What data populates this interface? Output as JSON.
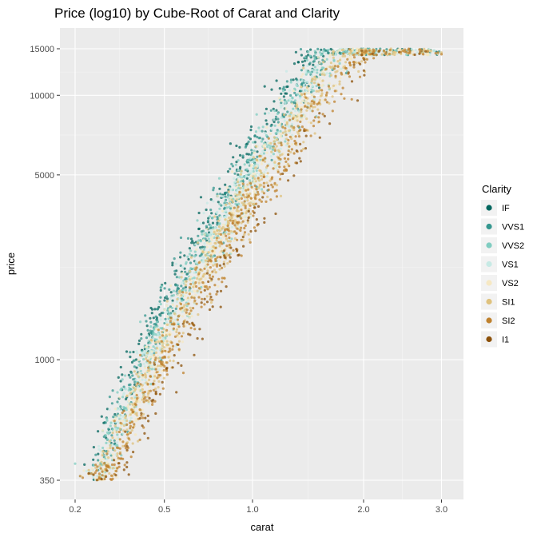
{
  "chart_data": {
    "type": "scatter",
    "title": "Price (log10) by Cube-Root of Carat and Clarity",
    "xlabel": "carat",
    "ylabel": "price",
    "x_scale": "cube-root",
    "y_scale": "log10",
    "xlim": [
      0.2,
      3.0
    ],
    "ylim": [
      350,
      15000
    ],
    "x_ticks": [
      0.2,
      0.5,
      1.0,
      2.0,
      3.0
    ],
    "x_tick_labels": [
      "0.2",
      "0.5",
      "1.0",
      "2.0",
      "3.0"
    ],
    "y_ticks": [
      350,
      1000,
      5000,
      10000,
      15000
    ],
    "y_tick_labels": [
      "350",
      "1000",
      "5000",
      "10000",
      "15000"
    ],
    "grid": true,
    "legend_title": "Clarity",
    "legend_position": "right",
    "series": [
      {
        "name": "IF",
        "color": "#01665e"
      },
      {
        "name": "VVS1",
        "color": "#35978f"
      },
      {
        "name": "VVS2",
        "color": "#80cdc1"
      },
      {
        "name": "VS1",
        "color": "#c7eae5"
      },
      {
        "name": "VS2",
        "color": "#f6e8c3"
      },
      {
        "name": "SI1",
        "color": "#dfc27d"
      },
      {
        "name": "SI2",
        "color": "#bf812d"
      },
      {
        "name": "I1",
        "color": "#8c510a"
      }
    ]
  }
}
